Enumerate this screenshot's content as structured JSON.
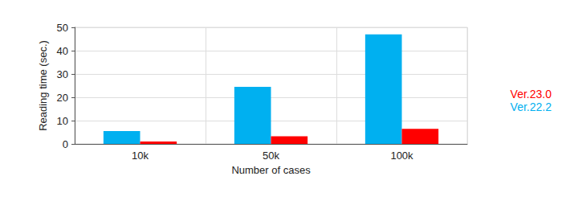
{
  "chart_data": {
    "type": "bar",
    "categories": [
      "10k",
      "50k",
      "100k"
    ],
    "x_label": "Number of cases",
    "y_label": "Reading time (sec.)",
    "series": [
      {
        "name": "Ver.22.2",
        "color": "#00b0f0",
        "values": [
          5.5,
          24.5,
          47
        ]
      },
      {
        "name": "Ver.23.0",
        "color": "#ff0000",
        "values": [
          1,
          3.3,
          6.5
        ]
      }
    ],
    "ylim": [
      0,
      50
    ],
    "yticks": [
      0,
      10,
      20,
      30,
      40,
      50
    ],
    "grid": true,
    "legend": "right"
  }
}
